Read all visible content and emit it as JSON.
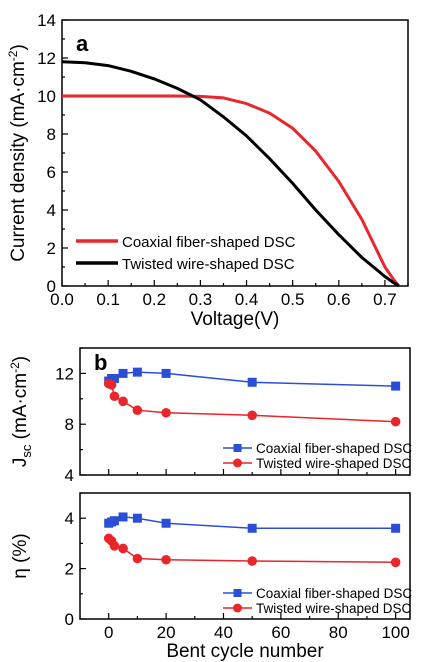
{
  "chart_data": [
    {
      "type": "line",
      "panel_label": "a",
      "xlabel": "Voltage(V)",
      "ylabel": "Current density (mA·cm⁻²)",
      "ylabel_main": "Current density (mA·cm",
      "ylabel_sup": "-2",
      "ylabel_end": ")",
      "xlim": [
        0.0,
        0.75
      ],
      "ylim": [
        0,
        14
      ],
      "xticks": [
        "0.0",
        "0.1",
        "0.2",
        "0.3",
        "0.4",
        "0.5",
        "0.6",
        "0.7"
      ],
      "yticks": [
        "0",
        "2",
        "4",
        "6",
        "8",
        "10",
        "12",
        "14"
      ],
      "legend_position": "lower-left",
      "series": [
        {
          "name": "Coaxial fiber-shaped DSC",
          "color": "#e8262b",
          "x": [
            0.0,
            0.05,
            0.1,
            0.15,
            0.2,
            0.25,
            0.3,
            0.35,
            0.4,
            0.45,
            0.5,
            0.55,
            0.6,
            0.65,
            0.68,
            0.7,
            0.72,
            0.73
          ],
          "y": [
            10.0,
            10.0,
            10.0,
            10.0,
            10.0,
            10.0,
            9.98,
            9.9,
            9.6,
            9.1,
            8.3,
            7.1,
            5.5,
            3.5,
            2.0,
            1.0,
            0.3,
            0.0
          ]
        },
        {
          "name": "Twisted wire-shaped DSC",
          "color": "#000000",
          "x": [
            0.0,
            0.05,
            0.1,
            0.15,
            0.2,
            0.25,
            0.3,
            0.35,
            0.4,
            0.45,
            0.5,
            0.55,
            0.6,
            0.65,
            0.7,
            0.72,
            0.73
          ],
          "y": [
            11.8,
            11.75,
            11.6,
            11.3,
            10.9,
            10.4,
            9.8,
            8.9,
            7.9,
            6.7,
            5.4,
            4.0,
            2.7,
            1.5,
            0.5,
            0.15,
            0.0
          ]
        }
      ]
    },
    {
      "type": "line",
      "panel_label": "b",
      "ylabel": "Jsc (mA·cm⁻²)",
      "ylabel_main": "J",
      "ylabel_sub": "sc",
      "ylabel_unit": " (mA·cm",
      "ylabel_sup": "-2",
      "ylabel_end": ")",
      "xlim": [
        -10,
        105
      ],
      "ylim": [
        4,
        14
      ],
      "yticks": [
        "4",
        "8",
        "12"
      ],
      "legend_position": "lower-right",
      "series": [
        {
          "name": "Coaxial fiber-shaped DSC",
          "color": "#2a4fd6",
          "marker": "square",
          "x": [
            0,
            1,
            2,
            5,
            10,
            20,
            50,
            100
          ],
          "y": [
            11.4,
            11.6,
            11.6,
            12.0,
            12.1,
            12.0,
            11.3,
            11.0
          ]
        },
        {
          "name": "Twisted wire-shaped DSC",
          "color": "#e8262b",
          "marker": "circle",
          "x": [
            0,
            1,
            2,
            5,
            10,
            20,
            50,
            100
          ],
          "y": [
            11.2,
            11.1,
            10.2,
            9.8,
            9.1,
            8.9,
            8.7,
            8.2
          ]
        }
      ]
    },
    {
      "type": "line",
      "ylabel": "η (%)",
      "xlabel": "Bent cycle number",
      "xlim": [
        -10,
        105
      ],
      "ylim": [
        0,
        5
      ],
      "xticks": [
        "0",
        "20",
        "40",
        "60",
        "80",
        "100"
      ],
      "yticks": [
        "0",
        "2",
        "4"
      ],
      "legend_position": "lower-right",
      "series": [
        {
          "name": "Coaxial fiber-shaped DSC",
          "color": "#2a4fd6",
          "marker": "square",
          "x": [
            0,
            1,
            2,
            5,
            10,
            20,
            50,
            100
          ],
          "y": [
            3.8,
            3.85,
            3.9,
            4.05,
            4.0,
            3.8,
            3.6,
            3.6
          ]
        },
        {
          "name": "Twisted wire-shaped DSC",
          "color": "#e8262b",
          "marker": "circle",
          "x": [
            0,
            1,
            2,
            5,
            10,
            20,
            50,
            100
          ],
          "y": [
            3.2,
            3.1,
            2.9,
            2.8,
            2.4,
            2.35,
            2.3,
            2.25
          ]
        }
      ]
    }
  ]
}
